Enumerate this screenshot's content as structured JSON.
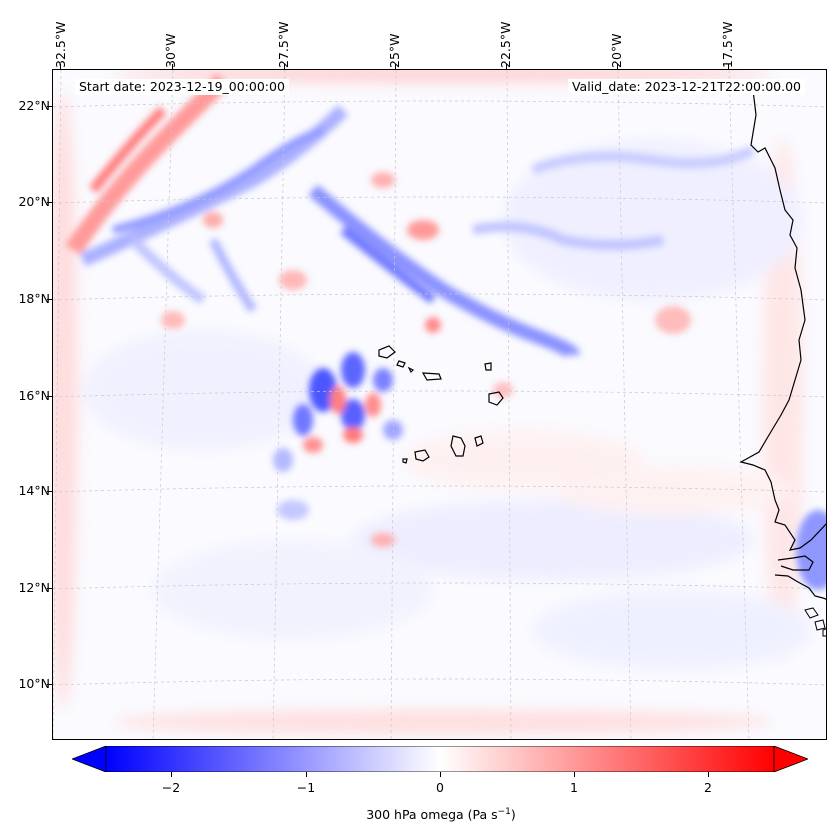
{
  "map": {
    "start_label": "Start date: 2023-12-19_00:00:00",
    "valid_label": "Valid_date: 2023-12-21T22:00:00.00",
    "lon_labels": [
      "32.5°W",
      "30°W",
      "27.5°W",
      "25°W",
      "22.5°W",
      "20°W",
      "17.5°W"
    ],
    "lat_labels": [
      "22°N",
      "20°N",
      "18°N",
      "16°N",
      "14°N",
      "12°N",
      "10°N"
    ],
    "gridlines": "on, dashed, light grey",
    "features": [
      "Cape Verde islands",
      "West African coastline (Senegal, Gambia, Guinea-Bissau)"
    ]
  },
  "colorbar": {
    "label_main": "300 hPa omega (Pa s",
    "label_sup": "−1",
    "label_end": ")",
    "tick_labels": [
      "−2",
      "−1",
      "0",
      "1",
      "2"
    ],
    "ticks": [
      -2,
      -1,
      0,
      1,
      2
    ],
    "range": [
      -2.6,
      2.6
    ],
    "extend": "both",
    "colormap": "bwr",
    "colors": {
      "min": "#0000ff",
      "mid": "#ffffff",
      "max": "#ff0000"
    }
  }
}
